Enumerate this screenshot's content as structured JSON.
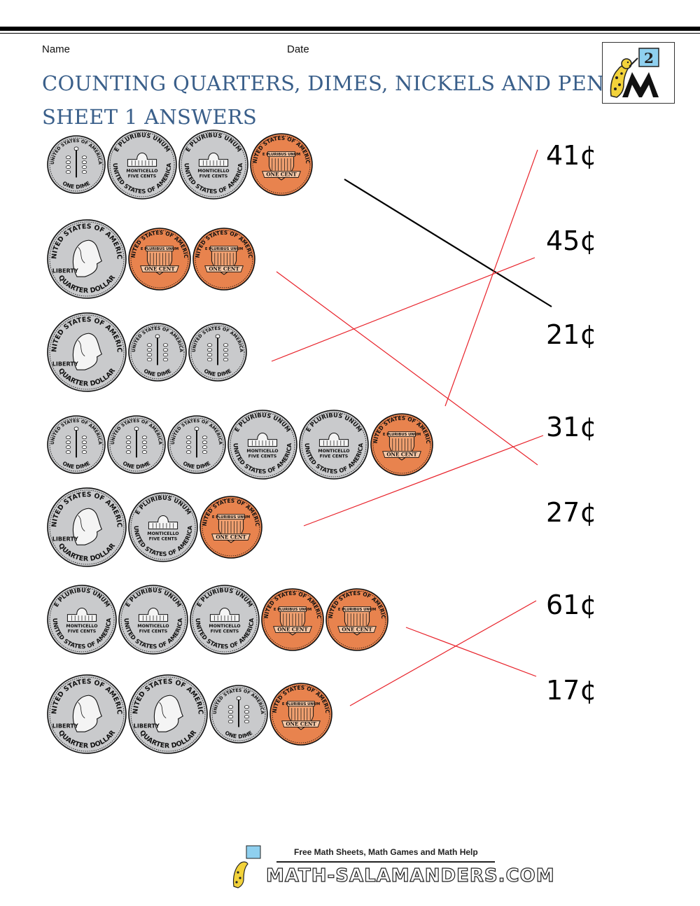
{
  "header": {
    "name_label": "Name",
    "date_label": "Date",
    "title_line1": "COUNTING QUARTERS, DIMES, NICKELS AND PENNIES",
    "title_line2": "SHEET 1 ANSWERS",
    "logo_badge": "2"
  },
  "rows": [
    {
      "coins": [
        "dime",
        "nickel",
        "nickel",
        "penny"
      ]
    },
    {
      "coins": [
        "quarter",
        "penny",
        "penny"
      ]
    },
    {
      "coins": [
        "quarter",
        "dime",
        "dime"
      ]
    },
    {
      "coins": [
        "dime",
        "dime",
        "dime",
        "nickel",
        "nickel",
        "penny"
      ]
    },
    {
      "coins": [
        "quarter",
        "nickel",
        "penny"
      ]
    },
    {
      "coins": [
        "nickel",
        "nickel",
        "nickel",
        "penny",
        "penny"
      ]
    },
    {
      "coins": [
        "quarter",
        "quarter",
        "dime",
        "penny"
      ]
    }
  ],
  "answers": [
    "41¢",
    "45¢",
    "21¢",
    "31¢",
    "27¢",
    "61¢",
    "17¢"
  ],
  "matches": [
    {
      "row": 1,
      "answer": 3,
      "color": "#000000"
    },
    {
      "row": 2,
      "answer": 5,
      "color": "#e8222a"
    },
    {
      "row": 3,
      "answer": 2,
      "color": "#e8222a"
    },
    {
      "row": 4,
      "answer": 1,
      "color": "#e8222a"
    },
    {
      "row": 5,
      "answer": 4,
      "color": "#e8222a"
    },
    {
      "row": 6,
      "answer": 7,
      "color": "#e8222a"
    },
    {
      "row": 7,
      "answer": 6,
      "color": "#e8222a"
    }
  ],
  "coin_text": {
    "quarter_top": "UNITED STATES OF AMERICA",
    "quarter_bottom": "QUARTER DOLLAR",
    "quarter_liberty": "LIBERTY",
    "dime_bottom": "ONE DIME",
    "dime_top": "UNITED STATES OF AMERICA",
    "nickel_top": "E PLURIBUS UNUM",
    "nickel_bottom": "UNITED STATES OF AMERICA",
    "nickel_mid": "MONTICELLO",
    "nickel_value": "FIVE CENTS",
    "penny_top": "UNITED STATES OF AMERICA",
    "penny_banner": "ONE CENT",
    "penny_scroll": "E PLURIBUS UNUM"
  },
  "footer": {
    "tagline": "Free Math Sheets, Math Games and Math Help",
    "brand": "MATH-SALAMANDERS.COM"
  },
  "colors": {
    "title": "#3a5f8a",
    "silver": "#c9cacc",
    "copper": "#e8834e",
    "match_line": "#e8222a"
  }
}
